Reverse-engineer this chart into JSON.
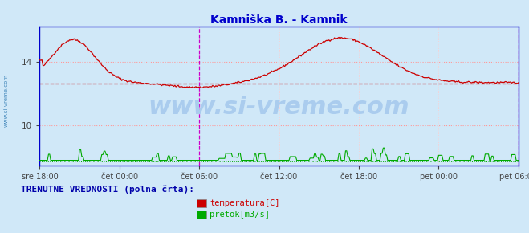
{
  "title": "Kamniška B. - Kamnik",
  "title_color": "#0000cc",
  "title_fontsize": 10,
  "bg_color": "#d0e8f8",
  "plot_bg_color": "#d0e8f8",
  "outer_bg_color": "#d0e8f8",
  "x_tick_labels": [
    "sre 18:00",
    "čet 00:00",
    "čet 06:00",
    "čet 12:00",
    "čet 18:00",
    "pet 00:00",
    "pet 06:00"
  ],
  "x_tick_positions": [
    0,
    72,
    144,
    216,
    288,
    360,
    432
  ],
  "n_points": 433,
  "ylim": [
    7.5,
    16.2
  ],
  "yticks": [
    10,
    14
  ],
  "grid_color_h": "#ff9999",
  "grid_color_v": "#ffcccc",
  "vline_color": "#cc00cc",
  "vline_positions": [
    144,
    432
  ],
  "avg_line_value": 12.65,
  "avg_line_color": "#cc0000",
  "flow_avg_value": 7.75,
  "flow_avg_color": "#00aa00",
  "watermark": "www.si-vreme.com",
  "watermark_color": "#aaccee",
  "watermark_fontsize": 22,
  "legend_label1": "temperatura[C]",
  "legend_label2": "pretok[m3/s]",
  "legend_color1": "#cc0000",
  "legend_color2": "#00aa00",
  "footer_text": "TRENUTNE VREDNOSTI (polna črta):",
  "footer_color": "#0000aa",
  "footer_fontsize": 8,
  "left_label": "www.si-vreme.com",
  "left_label_color": "#4488bb",
  "temp_color": "#cc0000",
  "flow_color": "#00aa00",
  "axis_color": "#0000cc",
  "tick_color": "#444444",
  "tick_fontsize": 7
}
